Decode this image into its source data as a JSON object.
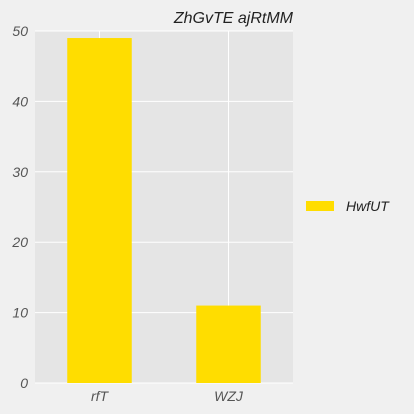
{
  "chart_data": {
    "type": "bar",
    "title": "ZhGvTE ajRtMM",
    "xlabel": "",
    "ylabel": "",
    "categories": [
      "rfT",
      "WZJ"
    ],
    "series": [
      {
        "name": "HwfUT",
        "values": [
          49,
          11
        ],
        "color": "#ffdd00"
      }
    ],
    "ylim": [
      0,
      50
    ],
    "yticks": [
      0,
      10,
      20,
      30,
      40,
      50
    ],
    "grid": true,
    "legend_position": "right",
    "colors": {
      "background": "#f0f0f0",
      "plot_background": "#e5e5e5",
      "grid": "#ffffff"
    }
  }
}
